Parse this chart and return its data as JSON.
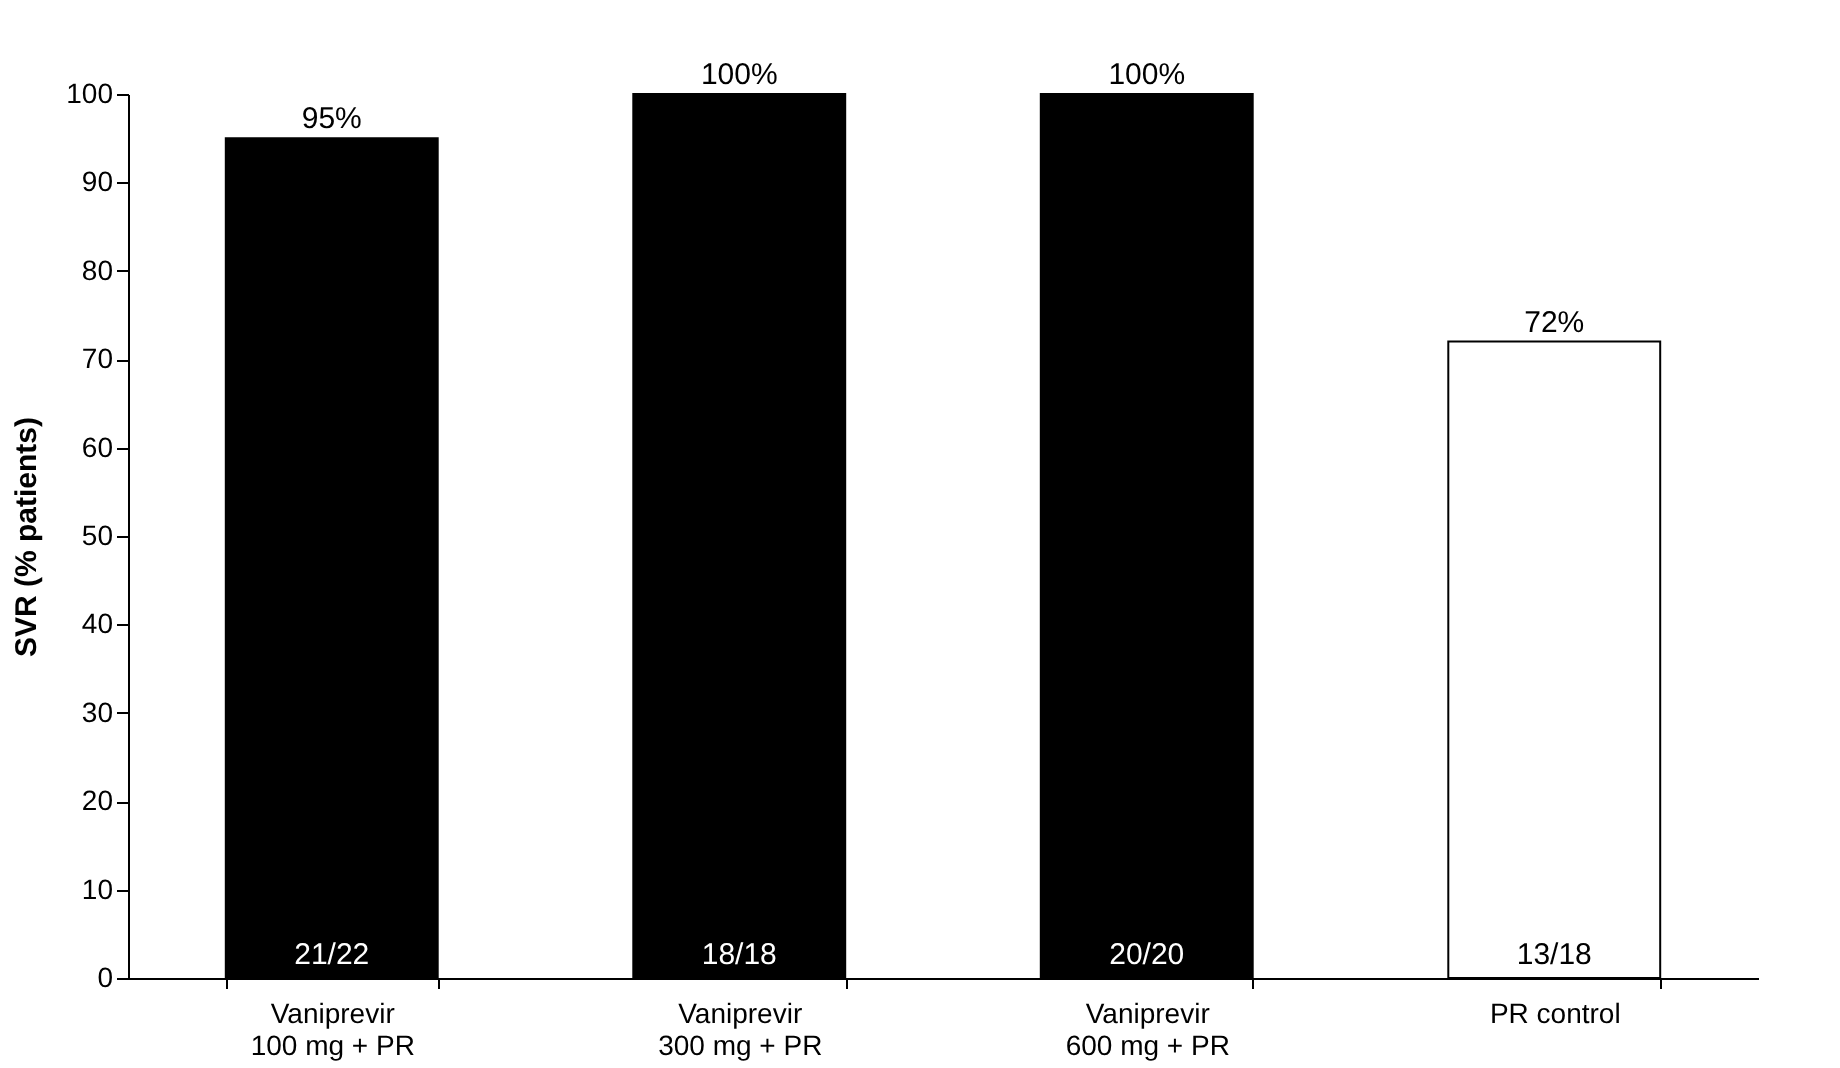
{
  "chart_data": {
    "type": "bar",
    "ylabel": "SVR (% patients)",
    "categories": [
      "Vaniprevir\n100 mg + PR",
      "Vaniprevir\n300 mg + PR",
      "Vaniprevir\n600 mg + PR",
      "PR control"
    ],
    "values": [
      95,
      100,
      100,
      72
    ],
    "colors": [
      "#000000",
      "#000000",
      "#000000",
      "#ffffff"
    ],
    "value_labels": [
      "95%",
      "100%",
      "100%",
      "72%"
    ],
    "ylim": [
      0,
      100
    ],
    "yticks": [
      0,
      10,
      20,
      30,
      40,
      50,
      60,
      70,
      80,
      90,
      100
    ],
    "grid": false,
    "annotations": [
      {
        "text": "21/22",
        "x": "Vaniprevir\n100 mg + PR",
        "y": 0
      },
      {
        "text": "18/18",
        "x": "Vaniprevir\n300 mg + PR",
        "y": 0
      },
      {
        "text": "20/20",
        "x": "Vaniprevir\n600 mg + PR",
        "y": 0
      },
      {
        "text": "13/18",
        "x": "PR control",
        "y": 0
      }
    ]
  }
}
